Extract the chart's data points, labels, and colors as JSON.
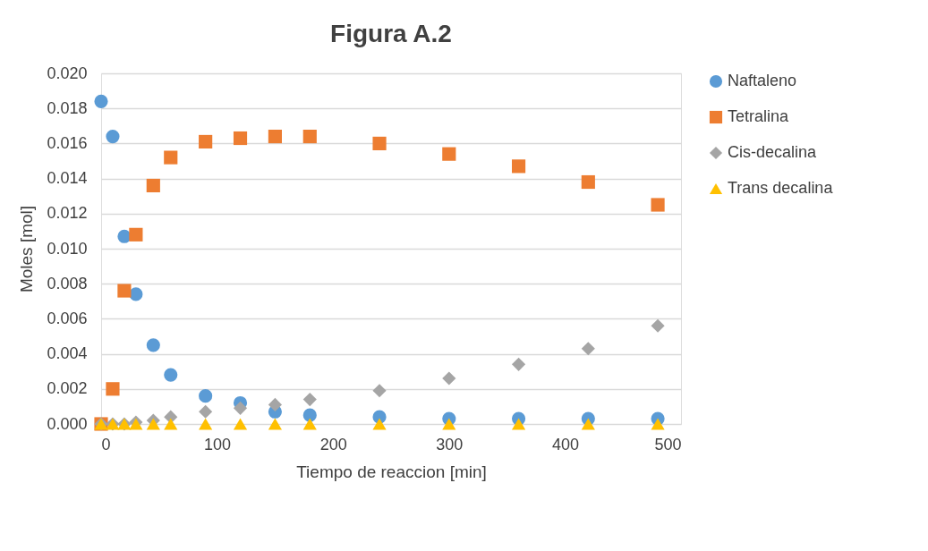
{
  "chart_data": {
    "type": "scatter",
    "title": "Figura A.2",
    "xlabel": "Tiempo de reaccion [min]",
    "ylabel": "Moles [mol]",
    "x": [
      0,
      10,
      20,
      30,
      45,
      60,
      90,
      120,
      150,
      180,
      240,
      300,
      360,
      420,
      480
    ],
    "series": [
      {
        "name": "Naftaleno",
        "color": "#5b9bd5",
        "marker": "circle",
        "values": [
          0.0184,
          0.0164,
          0.0107,
          0.0074,
          0.0045,
          0.0028,
          0.0016,
          0.0012,
          0.0007,
          0.0005,
          0.0004,
          0.0003,
          0.0003,
          0.0003,
          0.0003
        ]
      },
      {
        "name": "Tetralina",
        "color": "#ed7d31",
        "marker": "square",
        "values": [
          0,
          0.002,
          0.0076,
          0.0108,
          0.0136,
          0.0152,
          0.0161,
          0.0163,
          0.0164,
          0.0164,
          0.016,
          0.0154,
          0.0147,
          0.0138,
          0.0125
        ]
      },
      {
        "name": "Cis-decalina",
        "color": "#a5a5a5",
        "marker": "diamond",
        "values": [
          0,
          0,
          0,
          0.0001,
          0.0002,
          0.0004,
          0.0007,
          0.0009,
          0.0011,
          0.0014,
          0.0019,
          0.0026,
          0.0034,
          0.0043,
          0.0056
        ]
      },
      {
        "name": "Trans decalina",
        "color": "#ffc000",
        "marker": "triangle",
        "values": [
          0,
          0,
          0,
          0,
          0,
          0,
          0,
          0,
          0,
          0,
          0,
          0,
          0,
          0,
          0
        ]
      }
    ],
    "xlim": [
      0,
      500
    ],
    "xticks": [
      0,
      100,
      200,
      300,
      400,
      500
    ],
    "ylim": [
      0,
      0.02
    ],
    "yticks": [
      {
        "value": 0,
        "label": "0.000"
      },
      {
        "value": 0.002,
        "label": "0.002"
      },
      {
        "value": 0.004,
        "label": "0.004"
      },
      {
        "value": 0.006,
        "label": "0.006"
      },
      {
        "value": 0.008,
        "label": "0.008"
      },
      {
        "value": 0.01,
        "label": "0.010"
      },
      {
        "value": 0.012,
        "label": "0.012"
      },
      {
        "value": 0.014,
        "label": "0.014"
      },
      {
        "value": 0.016,
        "label": "0.016"
      },
      {
        "value": 0.018,
        "label": "0.018"
      },
      {
        "value": 0.02,
        "label": "0.020"
      }
    ],
    "grid": "y",
    "legend": "right"
  }
}
